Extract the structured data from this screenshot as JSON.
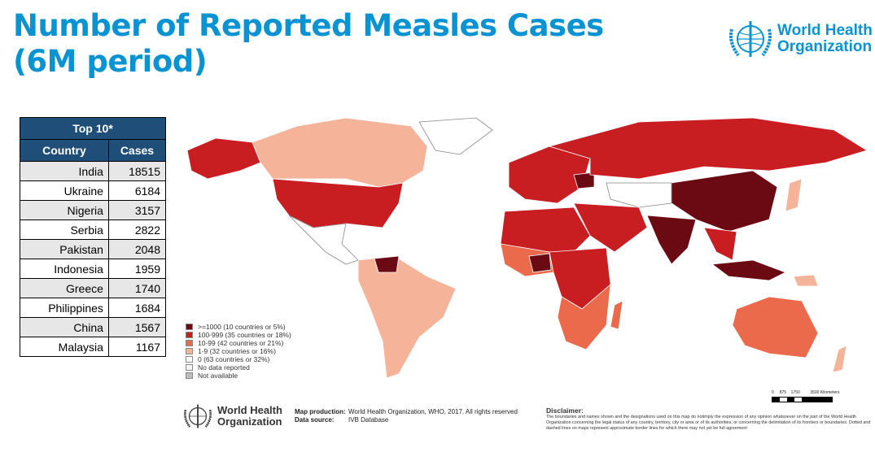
{
  "title": [
    "Number of Reported Measles Cases",
    "(6M period)"
  ],
  "org": {
    "line1": "World Health",
    "line2": "Organization"
  },
  "table": {
    "caption": "Top 10*",
    "headers": [
      "Country",
      "Cases"
    ],
    "rows": [
      [
        "India",
        "18515"
      ],
      [
        "Ukraine",
        "6184"
      ],
      [
        "Nigeria",
        "3157"
      ],
      [
        "Serbia",
        "2822"
      ],
      [
        "Pakistan",
        "2048"
      ],
      [
        "Indonesia",
        "1959"
      ],
      [
        "Greece",
        "1740"
      ],
      [
        "Philippines",
        "1684"
      ],
      [
        "China",
        "1567"
      ],
      [
        "Malaysia",
        "1167"
      ]
    ]
  },
  "legend": [
    {
      "label": ">=1000 (10 countries or 5%)",
      "color": "#6b0a12"
    },
    {
      "label": "100-999 (35 countries or 18%)",
      "color": "#c81e22"
    },
    {
      "label": "10-99 (42 countries or 21%)",
      "color": "#ec6a4c"
    },
    {
      "label": "1-9 (32 countries or 16%)",
      "color": "#f5b49a"
    },
    {
      "label": "0 (63 countries or 32%)",
      "color": "#ffffff"
    },
    {
      "label": "No data reported",
      "color": "#f4f4f4"
    },
    {
      "label": "Not available",
      "color": "#bdbdbd"
    }
  ],
  "footer": {
    "map_production_label": "Map production:",
    "map_production": "World Health Organization, WHO, 2017. All rights reserved",
    "data_source_label": "Data source:",
    "data_source": "IVB Database",
    "disclaimer_title": "Disclaimer:",
    "disclaimer": "The boundaries and names shown and the designations used on this map do notimply the expression of any opinion whatsoever on the part of the World Health Organization concerning the legal status of any country, territory, city or area or of its authorities, or concerning the delimitation of its frontiers or boundaries. Dotted and dashed lines on maps represent approximate border lines for which there may not yet be full agreement",
    "scale": [
      "0",
      "875",
      "1750",
      "3500 Kilometers"
    ]
  }
}
